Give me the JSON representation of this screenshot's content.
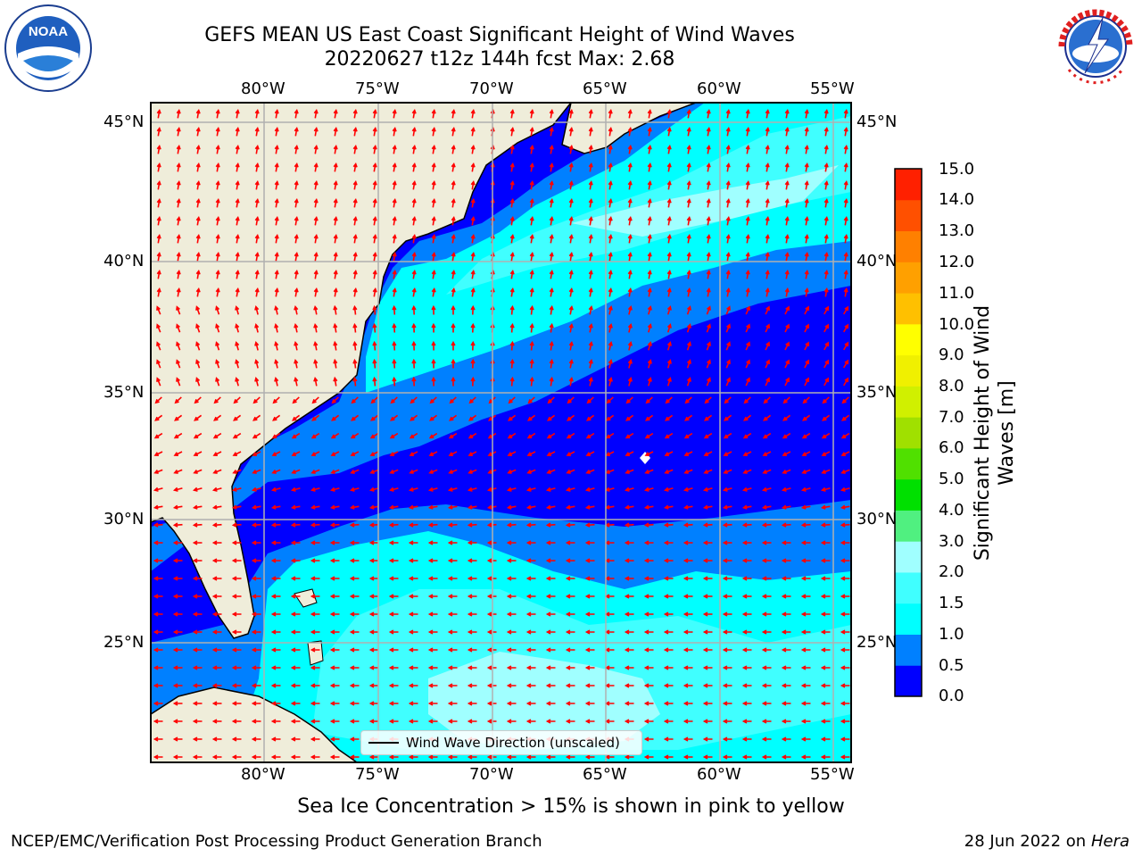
{
  "title_line1": "GEFS MEAN US East Coast Significant Height of Wind Waves",
  "title_line2": "20220627 t12z 144h fcst   Max: 2.68",
  "logos": {
    "left": "NOAA",
    "right": "NATIONAL WEATHER SERVICE"
  },
  "map": {
    "lon_ticks": [
      "80°W",
      "75°W",
      "70°W",
      "65°W",
      "60°W",
      "55°W"
    ],
    "lat_ticks": [
      "45°N",
      "40°N",
      "35°N",
      "30°N",
      "25°N"
    ],
    "lon_range": [
      -85,
      -54.5
    ],
    "lat_range": [
      20.5,
      46
    ],
    "grid": true,
    "land_color": "#efedda",
    "vector_color": "#ff0000",
    "max_marker_icon": "white-diamond"
  },
  "colorbar": {
    "label_line1": "Significant Height of Wind",
    "label_line2": "Waves [m]",
    "ticks": [
      "0.0",
      "0.5",
      "1.0",
      "1.5",
      "2.0",
      "3.0",
      "4.0",
      "5.0",
      "6.0",
      "7.0",
      "8.0",
      "9.0",
      "10.0",
      "11.0",
      "12.0",
      "13.0",
      "14.0",
      "15.0"
    ],
    "colors": [
      "#0000ff",
      "#0080ff",
      "#00ffff",
      "#40ffff",
      "#a0ffff",
      "#50f080",
      "#00e000",
      "#50e000",
      "#a0e000",
      "#d0f000",
      "#f0f000",
      "#ffff00",
      "#ffc000",
      "#ffa000",
      "#ff8000",
      "#ff5000",
      "#ff2000"
    ]
  },
  "legend_text": "Wind Wave Direction (unscaled)",
  "ice_note": "Sea Ice Concentration > 15% is shown in pink to yellow",
  "footer_left": "NCEP/EMC/Verification Post Processing Product Generation Branch",
  "footer_date": "28 Jun 2022 on",
  "footer_host": "Hera"
}
